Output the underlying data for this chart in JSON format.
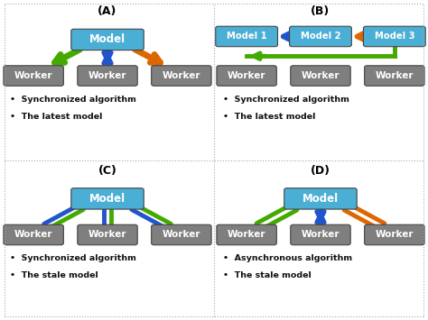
{
  "background": "#ffffff",
  "model_box_color": "#4baed4",
  "worker_box_color": "#7f7f7f",
  "title_color": "#000000",
  "arrow_blue": "#2255cc",
  "arrow_green": "#44aa00",
  "arrow_orange": "#dd6600",
  "panels": [
    {
      "label": "(A)",
      "text_lines": [
        "Synchronized algorithm",
        "The latest model"
      ],
      "type": "A"
    },
    {
      "label": "(B)",
      "text_lines": [
        "Synchronized algorithm",
        "The latest model"
      ],
      "type": "B"
    },
    {
      "label": "(C)",
      "text_lines": [
        "Synchronized algorithm",
        "The stale model"
      ],
      "type": "C"
    },
    {
      "label": "(D)",
      "text_lines": [
        "Asynchronous algorithm",
        "The stale model"
      ],
      "type": "D"
    }
  ]
}
